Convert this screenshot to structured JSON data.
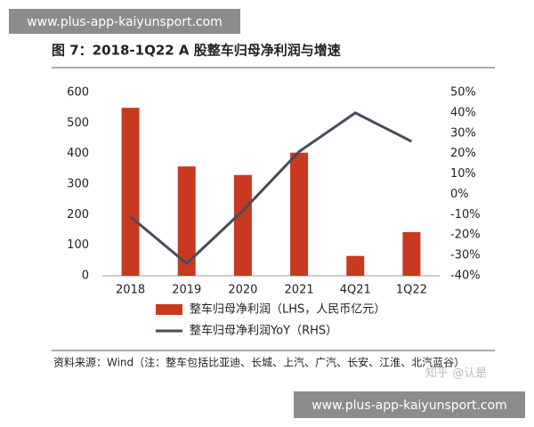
{
  "banner_top": "www.plus-app-kaiyunsport.com",
  "banner_bottom": "www.plus-app-kaiyunsport.com",
  "watermark": "知乎 @认是",
  "chart_data": {
    "type": "combo",
    "title": "图 7：2018-1Q22 A 股整车归母净利润与增速",
    "source": "资料来源：Wind（注：整车包括比亚迪、长城、上汽、广汽、长安、江淮、北汽蓝谷）",
    "categories": [
      "2018",
      "2019",
      "2020",
      "2021",
      "4Q21",
      "1Q22"
    ],
    "series": [
      {
        "name": "整车归母净利润（LHS，人民币亿元）",
        "type": "bar",
        "color": "#c8391f",
        "values": [
          550,
          358,
          330,
          403,
          65,
          143
        ]
      },
      {
        "name": "整车归母净利润YoY（RHS）",
        "type": "line",
        "axis": "y2",
        "color": "#474c5a",
        "values": [
          -11,
          -34,
          -8,
          21,
          40,
          26
        ]
      }
    ],
    "ylim": [
      0,
      600
    ],
    "yticks": [
      0,
      100,
      200,
      300,
      400,
      500,
      600
    ],
    "y2lim": [
      -40,
      50
    ],
    "y2ticks": [
      {
        "value": -40,
        "label": "-40%"
      },
      {
        "value": -30,
        "label": "-30%"
      },
      {
        "value": -20,
        "label": "-20%"
      },
      {
        "value": -10,
        "label": "-10%"
      },
      {
        "value": 0,
        "label": "0%"
      },
      {
        "value": 10,
        "label": "10%"
      },
      {
        "value": 20,
        "label": "20%"
      },
      {
        "value": 30,
        "label": "30%"
      },
      {
        "value": 40,
        "label": "40%"
      },
      {
        "value": 50,
        "label": "50%"
      }
    ]
  }
}
